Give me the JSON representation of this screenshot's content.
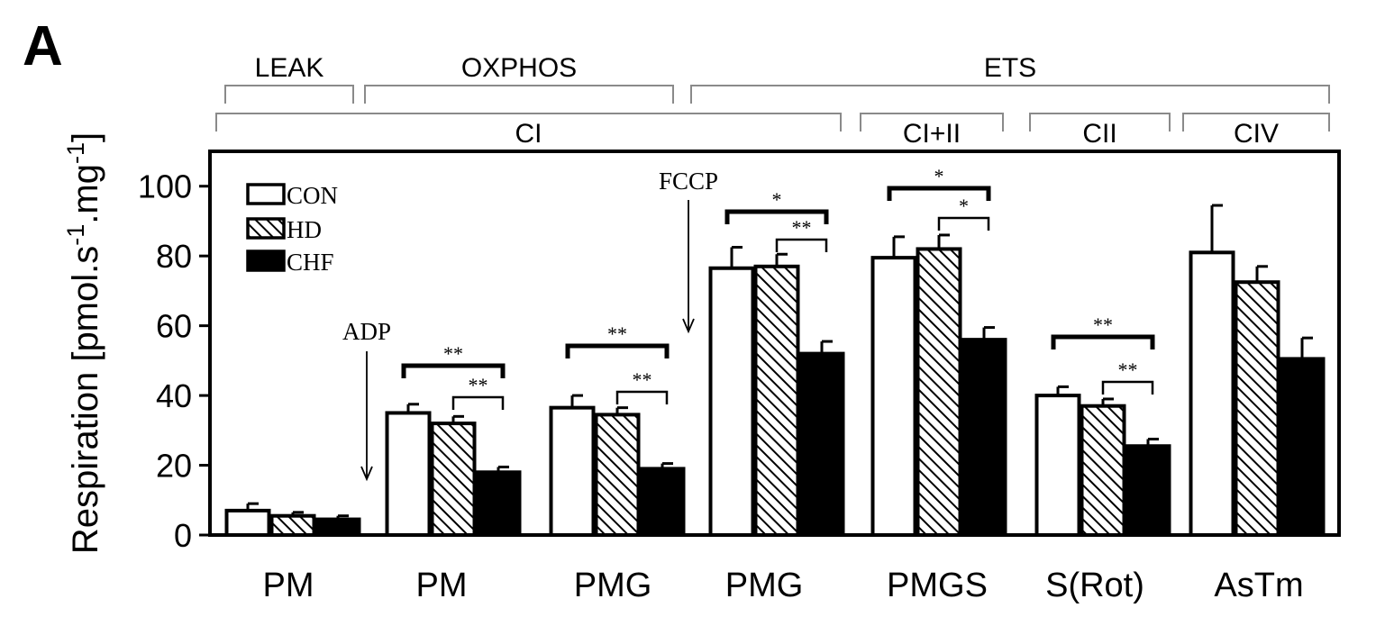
{
  "panel_label": "A",
  "chart_data": {
    "type": "bar",
    "ylabel": "Respiration [pmol.s-1.mg-1]",
    "ylabel_parts": {
      "base": "Respiration [pmol.s",
      "sup1": "-1",
      "mid": ".mg",
      "sup2": "-1",
      "end": "]"
    },
    "ylim": [
      0,
      110
    ],
    "yticks": [
      "0",
      "20",
      "40",
      "60",
      "80",
      "100"
    ],
    "categories": [
      "PM",
      "PM",
      "PMG",
      "PMG",
      "PMGS",
      "S(Rot)",
      "AsTm"
    ],
    "series": [
      {
        "name": "CON",
        "color": "#ffffff",
        "pattern": "solid-outline",
        "values": [
          7,
          35,
          36.5,
          76.5,
          79.5,
          40,
          81
        ],
        "errors": [
          2,
          2.5,
          3.5,
          6,
          6,
          2.5,
          13.5
        ]
      },
      {
        "name": "HD",
        "color": "#000000",
        "pattern": "hatched",
        "values": [
          5.5,
          32,
          34.5,
          77,
          82,
          37,
          72.5
        ],
        "errors": [
          1,
          2,
          2,
          3.5,
          4,
          2,
          4.5
        ]
      },
      {
        "name": "CHF",
        "color": "#000000",
        "pattern": "solid",
        "values": [
          4.5,
          18,
          19,
          52,
          56,
          25.5,
          50.5
        ],
        "errors": [
          1,
          1.5,
          1.5,
          3.5,
          3.5,
          2,
          6
        ]
      }
    ],
    "legend": {
      "placement": "top-left",
      "entries": [
        "CON",
        "HD",
        "CHF"
      ]
    },
    "annotations": {
      "arrows": [
        {
          "label": "ADP",
          "before_category_index": 1
        },
        {
          "label": "FCCP",
          "before_category_index": 3
        }
      ],
      "state_brackets": [
        {
          "label": "LEAK",
          "categories": [
            0,
            0
          ]
        },
        {
          "label": "OXPHOS",
          "categories": [
            1,
            2
          ]
        },
        {
          "label": "ETS",
          "categories": [
            3,
            6
          ]
        }
      ],
      "complex_brackets": [
        {
          "label": "CI",
          "categories": [
            0,
            3
          ]
        },
        {
          "label": "CI+II",
          "categories": [
            4,
            4
          ]
        },
        {
          "label": "CII",
          "categories": [
            5,
            5
          ]
        },
        {
          "label": "CIV",
          "categories": [
            6,
            6
          ]
        }
      ],
      "significance": [
        {
          "category": 1,
          "from": "CON",
          "to": "CHF",
          "label": "**"
        },
        {
          "category": 1,
          "from": "HD",
          "to": "CHF",
          "label": "**"
        },
        {
          "category": 2,
          "from": "CON",
          "to": "CHF",
          "label": "**"
        },
        {
          "category": 2,
          "from": "HD",
          "to": "CHF",
          "label": "**"
        },
        {
          "category": 3,
          "from": "CON",
          "to": "CHF",
          "label": "*"
        },
        {
          "category": 3,
          "from": "HD",
          "to": "CHF",
          "label": "**"
        },
        {
          "category": 4,
          "from": "CON",
          "to": "CHF",
          "label": "*"
        },
        {
          "category": 4,
          "from": "HD",
          "to": "CHF",
          "label": "*"
        },
        {
          "category": 5,
          "from": "CON",
          "to": "CHF",
          "label": "**"
        },
        {
          "category": 5,
          "from": "HD",
          "to": "CHF",
          "label": "**"
        }
      ]
    }
  }
}
